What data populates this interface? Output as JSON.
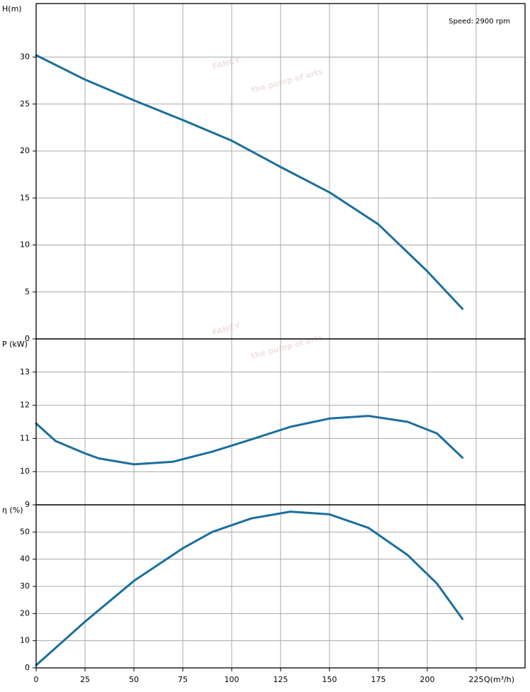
{
  "watermark": {
    "brand": "FANCY",
    "tagline": "the pump of arts"
  },
  "chart_data": [
    {
      "type": "line",
      "y_label": "H(m)",
      "annotation": "Speed: 2900 rpm",
      "ylim": [
        0,
        35.7
      ],
      "yticks": [
        0,
        5,
        10,
        15,
        20,
        25,
        30
      ],
      "grid": true,
      "series": [
        {
          "name": "H",
          "color": "#1b6f9c",
          "x": [
            0,
            25,
            50,
            75,
            100,
            125,
            150,
            175,
            200,
            218
          ],
          "values": [
            30.2,
            27.6,
            25.4,
            23.3,
            21.1,
            18.3,
            15.6,
            12.2,
            7.2,
            3.2
          ]
        }
      ]
    },
    {
      "type": "line",
      "y_label": "P (kW)",
      "ylim": [
        9,
        14
      ],
      "yticks": [
        9,
        10,
        11,
        12,
        13
      ],
      "grid": true,
      "series": [
        {
          "name": "P",
          "color": "#1b6f9c",
          "x": [
            0,
            10,
            25,
            32,
            50,
            70,
            90,
            110,
            130,
            150,
            170,
            190,
            205,
            218
          ],
          "values": [
            11.45,
            10.92,
            10.55,
            10.4,
            10.22,
            10.3,
            10.6,
            10.97,
            11.35,
            11.6,
            11.68,
            11.5,
            11.15,
            10.42
          ]
        }
      ]
    },
    {
      "type": "line",
      "y_label": "η (%)",
      "x_label": "Q(m³/h)",
      "xlim": [
        0,
        250
      ],
      "xticks": [
        0,
        25,
        50,
        75,
        100,
        125,
        150,
        175,
        200,
        225
      ],
      "ylim": [
        0,
        60
      ],
      "yticks": [
        0,
        10,
        20,
        30,
        40,
        50
      ],
      "grid": true,
      "series": [
        {
          "name": "η",
          "color": "#1b6f9c",
          "x": [
            0,
            25,
            50,
            75,
            90,
            110,
            130,
            150,
            170,
            190,
            205,
            218
          ],
          "values": [
            1,
            17,
            32,
            44,
            50,
            55,
            57.5,
            56.5,
            51.5,
            41.5,
            31,
            18
          ]
        }
      ]
    }
  ]
}
